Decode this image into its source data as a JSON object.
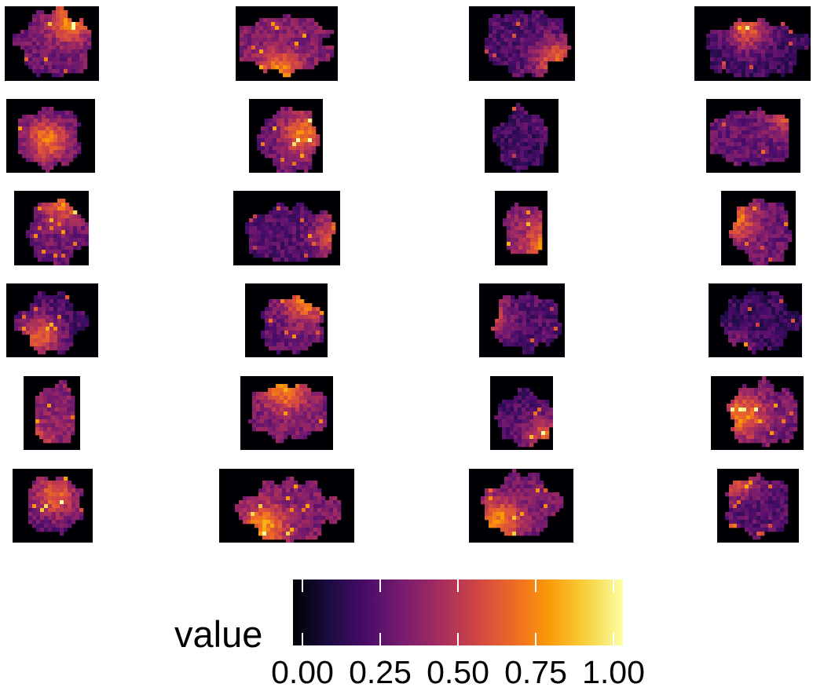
{
  "chart_data": {
    "type": "heatmap",
    "title": "",
    "xlabel": "",
    "ylabel": "",
    "facets": {
      "rows": 6,
      "columns": 4,
      "count": 24,
      "description": "spatial heatmaps of tissue sections"
    },
    "colormap": "inferno",
    "legend": {
      "title": "value",
      "position": "bottom",
      "range": [
        0,
        1
      ],
      "ticks": [
        0.0,
        0.25,
        0.5,
        0.75,
        1.0
      ],
      "tick_labels": [
        "0.00",
        "0.25",
        "0.50",
        "0.75",
        "1.00"
      ],
      "colors": [
        "#000004",
        "#1b0c41",
        "#4a0c6b",
        "#781c6d",
        "#a52c60",
        "#cf4446",
        "#ed6925",
        "#fb9b06",
        "#f7d13d",
        "#fcffa4"
      ]
    },
    "panel_background": "#000004"
  }
}
